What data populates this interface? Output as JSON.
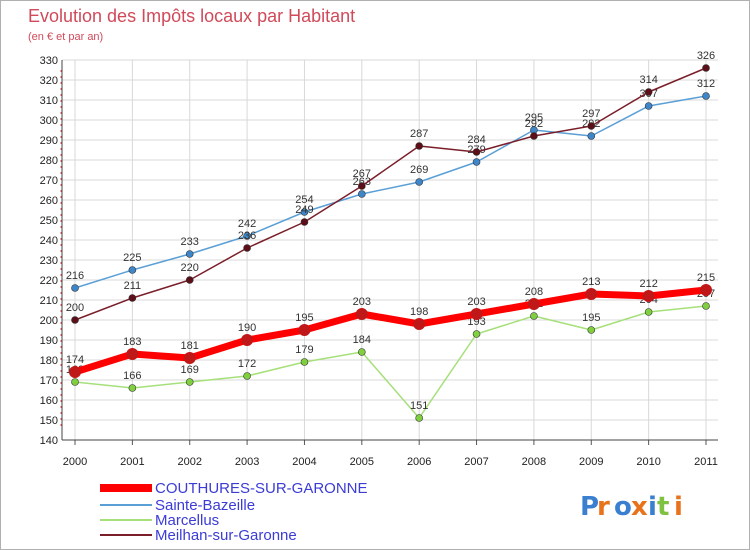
{
  "chart_data": {
    "type": "line",
    "title": "Evolution des Impôts locaux par Habitant",
    "subtitle": "(en € et par an)",
    "x": [
      "2000",
      "2001",
      "2002",
      "2003",
      "2004",
      "2005",
      "2006",
      "2007",
      "2008",
      "2009",
      "2010",
      "2011"
    ],
    "yticks": [
      140,
      150,
      160,
      170,
      180,
      190,
      200,
      210,
      220,
      230,
      240,
      250,
      260,
      270,
      280,
      290,
      300,
      310,
      320,
      330
    ],
    "ylim": [
      140,
      330
    ],
    "grid": true,
    "legend_position": "bottom-left",
    "series": [
      {
        "name": "COUTHURES-SUR-GARONNE",
        "color": "#ff0000",
        "point_color": "#c01818",
        "values": [
          174,
          183,
          181,
          190,
          195,
          203,
          198,
          203,
          208,
          213,
          212,
          215
        ]
      },
      {
        "name": "Sainte-Bazeille",
        "color": "#5a9fd6",
        "point_color": "#3f86c9",
        "values": [
          216,
          225,
          233,
          242,
          254,
          263,
          269,
          279,
          295,
          292,
          307,
          312
        ]
      },
      {
        "name": "Marcellus",
        "color": "#a6e07a",
        "point_color": "#7fcf3f",
        "values": [
          169,
          166,
          169,
          172,
          179,
          184,
          151,
          193,
          202,
          195,
          204,
          207
        ]
      },
      {
        "name": "Meilhan-sur-Garonne",
        "color": "#7a1f2a",
        "point_color": "#5c0f18",
        "values": [
          200,
          211,
          220,
          236,
          249,
          267,
          287,
          284,
          292,
          297,
          314,
          326
        ]
      }
    ]
  },
  "branding": {
    "logo_text": "Proxiti"
  }
}
